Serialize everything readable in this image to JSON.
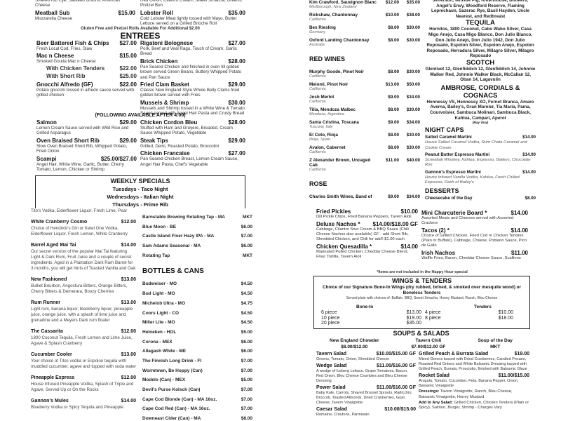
{
  "food": {
    "top_left": [
      {
        "name": "",
        "price": "",
        "desc": "Shaved Rib Eye, Sauteed Onions, American Cheese"
      },
      {
        "name": "Meatball Sub",
        "price": "$15.00",
        "desc": "Mozzarella Cheese"
      }
    ],
    "top_right": [
      {
        "name": "",
        "price": "",
        "desc": "Red Onion, Cilantro Cream, Sweet Sriracha, Greens, Pretzel Bun"
      },
      {
        "name": "Lobster Roll",
        "price": "$35.00",
        "desc": "Cold Lobster Meat lightly tossed with Mayo, Butter Lettuce served on a Grilled Brioche Roll"
      }
    ],
    "roll_note": "Gluten Free and Pretzel Rolls Available For Additional $2.00",
    "entrees_title": "ENTREES",
    "entrees_left": [
      {
        "name": "Beer Battered Fish & Chips",
        "price": "$27.00",
        "desc": "Fresh Local Cod, Fries, Slaw"
      },
      {
        "name": "Mac n Cheese",
        "price": "$15.00",
        "desc": "Smoked Gouda Mac n Cheese",
        "options": [
          {
            "name": "With Chicken Tenders",
            "price": "$22.00"
          },
          {
            "name": "With Short Rib",
            "price": "$25.00"
          }
        ]
      },
      {
        "name": "Gnocchi Alfredo (GF)",
        "price": "$22.00",
        "desc": "Potato gnocchi tossed in alfredo sauce served with grilled chicken"
      }
    ],
    "entrees_right": [
      {
        "name": "Rigatoni Bolognese",
        "price": "$27.00",
        "desc": "Pork, Beef and Veal Ragu, Touch of Cream, Garlic Bread"
      },
      {
        "name": "Brick Chicken",
        "price": "$28.00",
        "desc": "Pan Seared Chicken and finished in oven till golden brown served Green Beans, Buttery Whipped Potato and Pan Sauce"
      },
      {
        "name": "Fried Clam Basket",
        "price": "$29.00",
        "desc": "Classic New England Style Whole Belly Clams fried golden brown served with Fries"
      },
      {
        "name": "Mussels & Shrimp",
        "price": "$30.00",
        "desc": "Mussels and Shrimp tossed in a White Wine & Tomato Sauce served with Angel Hair Pasta and Crusty Bread"
      }
    ],
    "after4_title": "(FOLLOWING AVAILABLE AFTER 4:00)",
    "after4_left": [
      {
        "name": "Salmon",
        "price": "$29.00",
        "desc": "Lemon Cream Sauce served with Wild Rice and Grilled Asparagus"
      },
      {
        "name": "Oven Braised Short Rib",
        "price": "$29.00",
        "desc": "Slow Oven Braised Short Rib, Whipped Potato, Fried Onion"
      },
      {
        "name": "Scampi",
        "price": "$25.00/$27.00",
        "desc": "Angel Hair, White Wine, Garlic, Butter, Cherry Tomato, Lemon, Chicken or Shrimp"
      }
    ],
    "after4_right": [
      {
        "name": "Chicken Cordon Bleu",
        "price": "$28.00",
        "desc": "Stuffed with Ham and Gruyere, Breaded, Cream Sauce Whipped Potato, Vegetable"
      },
      {
        "name": "Steak Tips",
        "price": "$29.00",
        "desc": "Grilled, Demi, Roasted Potato, Broccolini"
      },
      {
        "name": "Chicken Francaise",
        "price": "$27.00",
        "desc": "Pan Seared Chicken Breast, Lemon Cream Sauce, Angel Hair Pasta, Chef's Vegetable"
      }
    ],
    "weekly": {
      "title": "WEEKLY SPECIALS",
      "days": [
        "Tuesdays - Taco Night",
        "Wednesdays -  Italian Night",
        "Thursdays -  Prime Rib"
      ]
    }
  },
  "cocktails": [
    {
      "name": "",
      "price": "",
      "desc": "Tito's Vodka, Elderflower Liquor, Fresh Lime, Pear"
    },
    {
      "name": "White Cranberry Cosmo",
      "price": "$12.00",
      "desc": "Choice of Hendrick's Gin or Ketel One Vodka, Elderflower Liquor, Fresh Lemon, White Cranberry"
    },
    {
      "name": "Barrel Aged Mai Tai",
      "price": "$14.00",
      "desc": "Our secret version of the popular Mai Tai featuring Light & Dark Rum, Fruit Juice and a couple of secret ingredients. Aged in a Plantation Dark Rum Barrel for 3 months, you will get hints of Toasted Vanilla and Oak"
    },
    {
      "name": "New Fashioned",
      "price": "$13.00",
      "desc": "Bulliet Bourbon, Angostura Bitters, Orange Bitters, Cherry Bitters & Demerara, Boozy Cherries"
    },
    {
      "name": "Rum Runner",
      "price": "$13.00",
      "desc": "Light rum, banana liquor, blackberry liquor, pineapple juice, orange juice, with a splash of lime juice and grenadine and a Meyers Dark rum floater"
    },
    {
      "name": "The Cassarita",
      "price": "$12.00",
      "desc": "1800 Coconut Tequila, Fresh Lemon and Lime Juice, Agave & Splash Cranberry"
    },
    {
      "name": "Cucumber Cooler",
      "price": "$13.00",
      "desc": "Your choice of Titos vodka or Espolon tequila with muddled cucumber, agave and topped with soda water"
    },
    {
      "name": "Pineapple Express",
      "price": "$12.00",
      "desc": "House Infused Pineapple Vodka, Splash of Triple and Agave, Served Up or On the Rocks"
    },
    {
      "name": "Gannon's Mules",
      "price": "$14.00",
      "desc": "Blueberry Vodka or Spicy Tequila and Pineapple"
    }
  ],
  "beer": {
    "drafts": [
      {
        "name": "Barnstable Brewing Rotating Tap - MA",
        "price": "MKT"
      },
      {
        "name": "Blue Moon - BE",
        "price": "$6.00"
      },
      {
        "name": "Castle Island Fiver Hazy IPA - MA",
        "price": "$7.00"
      },
      {
        "name": "Sam Adams Seasonal - MA",
        "price": "$6.00"
      },
      {
        "name": "Rotating Tap",
        "price": "MKT"
      }
    ],
    "bottles_title": "BOTTLES & CANS",
    "bottles": [
      {
        "name": "Budweiser - MO",
        "price": "$4.50"
      },
      {
        "name": "Bud Light - MO",
        "price": "$4.50"
      },
      {
        "name": "Michelob Ultra - MO",
        "price": "$4.75"
      },
      {
        "name": "Coors Light - CO",
        "price": "$4.50"
      },
      {
        "name": "Miller Lite - MO",
        "price": "$4.50"
      },
      {
        "name": "Heineken - HOL",
        "price": "$5.00"
      },
      {
        "name": "Corona - MEX",
        "price": "$6.00"
      },
      {
        "name": "Allagash White - ME",
        "price": "$6.00"
      },
      {
        "name": "The Finnish Long Drink - FI",
        "price": "$7.00"
      },
      {
        "name": "Wormtown, Be Hoppy (Can)",
        "price": "$7.00"
      },
      {
        "name": "Modelo (Can) - MEX",
        "price": "$5.00"
      },
      {
        "name": "Devil's Purse Kolsch (Can)",
        "price": "$7.00"
      },
      {
        "name": "Cape Cod Blonde (Can) - MA 16oz.",
        "price": "$7.00"
      },
      {
        "name": "Cape Cod Red (Can) - MA 16oz.",
        "price": "$7.00"
      },
      {
        "name": "Downeast Cider (Can) - MA",
        "price": "$8.00"
      }
    ]
  },
  "wines": {
    "white": [
      {
        "name": "Kim Crawford, Sauvignon Blanc",
        "region": "Marlborough, New Zealand",
        "glass": "$12.00",
        "bottle": "$35.00"
      },
      {
        "name": "Rickshaw, Chardonnay",
        "region": "California",
        "glass": "$10.00",
        "bottle": "$38.00"
      },
      {
        "name": "Bex Riesling",
        "region": "Germany",
        "glass": "$8.00",
        "bottle": "$30.00"
      },
      {
        "name": "Oxford Landing Chardonnay",
        "region": "Australia",
        "glass": "$8.00",
        "bottle": "$30.00"
      }
    ],
    "red_title": "RED WINES",
    "red": [
      {
        "name": "Murphy Goode, Pinot Noir",
        "region": "California",
        "glass": "$8.00",
        "bottle": "$30.00"
      },
      {
        "name": "Meiomi, Pinot Noir",
        "region": "California",
        "glass": "$13.00",
        "bottle": "$50.00"
      },
      {
        "name": "Josh Merlot",
        "region": "California",
        "glass": "$9.00",
        "bottle": "$34.00"
      },
      {
        "name": "Tilia, Mendoza Malbec",
        "region": "Mendoza, Argentina",
        "glass": "$8.00",
        "bottle": "$30.00"
      },
      {
        "name": "Santa Cristina, Toscana",
        "region": "Tuscany, Italy",
        "glass": "$9.00",
        "bottle": "$34.00"
      },
      {
        "name": "El Coto, Rioja",
        "region": "Rioja, Spain",
        "glass": "$8.00",
        "bottle": "$30.00"
      },
      {
        "name": "Avalon, Cabernet",
        "region": "California",
        "glass": "$8.00",
        "bottle": "$30.00"
      },
      {
        "name": "Z Alexander Brown, Uncaged Cab",
        "region": "California",
        "glass": "$11.00",
        "bottle": "$40.00"
      }
    ],
    "rose_title": "ROSE",
    "rose": [
      {
        "name": "Charles Smith Wines, Band of",
        "region": "",
        "glass": "$9.00",
        "bottle": "$34.00"
      }
    ]
  },
  "spirits": {
    "whiskey_text": "Jefferson, Whistle Pig, Rittenhouse, Bookers, Angel's Envy, Woodford Reserve, Flaming Leprechaun, Sazerac Rye, Basil Hayden, Uncle Nearest, and Redbreast",
    "tequila_title": "TEQUILA",
    "tequila_text": "Hornitos, 1800 Coconut, Cabo Wabo Silver, Casa Migo Anejo, Casa Migo Blanco, Don Julio Blanco, Don Julio Anejo, Don Julio 1942, Don Julio Reposado, Espolon Silver, Espolon Anejo, Espolon Reposado, Herradura Silver, Milagro Silver, Milagro Reposado",
    "scotch_title": "SCOTCH",
    "scotch_text": "Glenlivet 12, Glenfiddich 12, Glenfiddich 14, Johnnie Walker Red, Johnnie Walker Black, McCallan 12, Oban 14, Lagavulin",
    "cordials_title": "AMBROSE, CORDIALS & COGNACS",
    "cordials_text": "Hennessy VS, Hennessy XO, Fernet Branca, Amaro Averna, Bailey's, Gran Marnier, Tia Maria, Pama, Courvoisier, Sambuca Molinari, Sambuca Black, Kahlua, Campari, Aperol",
    "may_vary": "(May Vary)",
    "nightcaps_title": "NIGHT CAPS",
    "nightcaps": [
      {
        "name": "Salted Caramel Martini",
        "price": "$14.00",
        "desc": "House Salted Caramel Vodka, Rum Chata Caramel and Cookie Cream"
      },
      {
        "name": "Peanut Butter Espresso Martini",
        "price": "$14.00",
        "desc": "Screwball Whiskey, Kahlua, Espresso, Baileys, Chocolate Rim"
      },
      {
        "name": "Gannon's Espresso Martini",
        "price": "$14.00",
        "desc": "House Infused Vanilla Vodka, Kahlua, Fresh Chilled Espresso, Dash of Bailey's"
      }
    ],
    "desserts_title": "DESSERTS",
    "desserts": [
      {
        "name": "Cheesecake of the Day",
        "price": "$8.00"
      }
    ]
  },
  "apps": {
    "left": [
      {
        "name": "Fried Pickles",
        "price": "$10.00",
        "desc": "Dill Pickle Chips, Fried Banana Peppers, Tavern Aioli"
      },
      {
        "name": "Deluxe Nachos  *",
        "price": "$14.00/$18.00 GF",
        "desc": "Cabbage, Cilantro Sour Cream & BBQ Sauce (Chili Cheese Nachos also available) GF - add Short Rib, Shredded Chicken, and Chili for add'l $1.00 each"
      },
      {
        "name": "Chicken Quesadilla *",
        "price": "$14.00",
        "desc": "Marinated Pulled Chicken, Cheddar Cheese Blend, Flour Tortilla, Tavern Aioli"
      }
    ],
    "right": [
      {
        "name": "Mini Charcuterie Board *",
        "price": "$14.00",
        "desc": "Assorted Meats and Cheeses served with Assorted Crackers"
      },
      {
        "name": "Tacos (2) *",
        "price": "$14.00",
        "desc": "Choice of Grilled Chicken, Fried Cod or Chicken Tenders (Plain or Buffalo), Cabbage, Cheese, Poblano Sauce, Pico de Gallo"
      },
      {
        "name": "Irish Nachos",
        "price": "$11.00",
        "desc": "Waffle Fries, Bacon, Cheddar Cheese Sauce, Scallions"
      }
    ],
    "note": "*Items are not included in the Happy Hour special"
  },
  "wings": {
    "title": "WINGS & TENDERS",
    "subtitle": "Choice of our Signature Bone-In Wings (dry rubbed, brined, & smoked over mesquite wood) or Boneless Tenders",
    "sauces": "Served plain with choices of: Buffalo, BBQ, Sweet Sriracha, Honey Mustard, Ranch, Bleu Cheese",
    "bone_in_title": "Bone-In",
    "bone_in": [
      {
        "name": "6 piece",
        "price": "$13.00"
      },
      {
        "name": "10 piece",
        "price": "$19.00"
      },
      {
        "name": "20 piece",
        "price": "$35.00"
      }
    ],
    "tenders_title": "Tenders",
    "tenders": [
      {
        "name": "4 piece",
        "price": "$10.00"
      },
      {
        "name": "8 piece",
        "price": "$18.00"
      }
    ]
  },
  "soups": {
    "title": "SOUPS & SALADS",
    "soups": [
      {
        "name": "New England Chowder",
        "price": "$8.00/$12.00"
      },
      {
        "name": "Tavern Chili",
        "price": "$7.00/$12.00 GF"
      },
      {
        "name": "Soup of the Day",
        "price": "MKT"
      }
    ],
    "salads_left": [
      {
        "name": "Tavern Salad",
        "price": "$10.00/$15.00 GF",
        "desc": "Greens, Tomato, Onion, Shredded Cheese"
      },
      {
        "name": "Wedge Salad",
        "price": "$11.00/$16.00 GF",
        "desc": "A wedge of Iceberg Lettuce, Grape Tomatoes, Bacon, Red Onion, Bleu Cheese Crumbles and Bleu Cheese Dressing"
      },
      {
        "name": "Power Salad",
        "price": "$11.00/$16.00 GF",
        "desc": "Baby Kale, Carrots, Shaved Brussel Sprouts, Radicchio, Broccoli, Toasted Almonds, Dried Cranberries, Goat Cheese, Tavern Vinaigrette"
      },
      {
        "name": "Caesar Salad",
        "price": "$10.00/$15.00",
        "desc": "Romaine, Croutons, Parmesan"
      }
    ],
    "salads_right": [
      {
        "name": "Grilled Peach & Burrata Salad",
        "price": "$19.00",
        "desc": "Mixed Greens tossed with Dried Cranberries, Candied Pecans, Roasted Red Onions and White Balsamic Dressing topped with Grilled Peach, Burrata, Prosciutto, finished with Balsamic Glaze"
      },
      {
        "name": "Rocket Salad",
        "price": "$11.00/$15.00",
        "desc": "Arugula, Tomato, Cucumber, Feta, Banana Pepper, Onion, Balsamic Vinaigrette"
      }
    ],
    "dressings_label": "Dressings:",
    "dressings": "Tavern Vinaigrette, Ranch, Bleu Cheese, Balsamic Vinaigrette, Honey Mustard",
    "addons_label": "Add to Any Salad:",
    "addons": "Grilled Chicken, Chicken Tenders (Plain or Spicy), Salmon, Burger, Shrimp - Charges Vary"
  }
}
